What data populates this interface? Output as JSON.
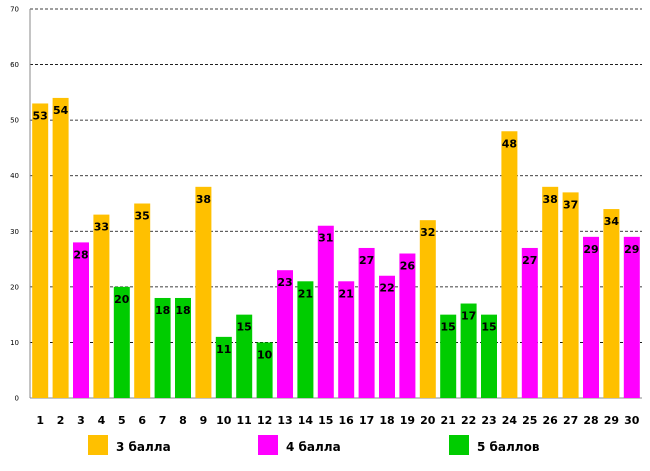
{
  "chart_data": {
    "type": "bar",
    "title": "",
    "xlabel": "",
    "ylabel": "",
    "ylim": [
      0,
      70
    ],
    "yticks": [
      0,
      10,
      20,
      30,
      40,
      50,
      60,
      70
    ],
    "grid": true,
    "categories": [
      "1",
      "2",
      "3",
      "4",
      "5",
      "6",
      "7",
      "8",
      "9",
      "10",
      "11",
      "12",
      "13",
      "14",
      "15",
      "16",
      "17",
      "18",
      "19",
      "20",
      "21",
      "22",
      "23",
      "24",
      "25",
      "26",
      "27",
      "28",
      "29",
      "30"
    ],
    "values": [
      53,
      54,
      28,
      33,
      20,
      35,
      18,
      18,
      38,
      11,
      15,
      10,
      23,
      21,
      31,
      21,
      27,
      22,
      26,
      32,
      15,
      17,
      15,
      48,
      27,
      38,
      37,
      29,
      34,
      29
    ],
    "groups": [
      "3 балла",
      "3 балла",
      "4 балла",
      "3 балла",
      "5 баллов",
      "3 балла",
      "5 баллов",
      "5 баллов",
      "3 балла",
      "5 баллов",
      "5 баллов",
      "5 баллов",
      "4 балла",
      "5 баллов",
      "4 балла",
      "4 балла",
      "4 балла",
      "4 балла",
      "4 балла",
      "3 балла",
      "5 баллов",
      "5 баллов",
      "5 баллов",
      "3 балла",
      "4 балла",
      "3 балла",
      "3 балла",
      "4 балла",
      "3 балла",
      "4 балла"
    ],
    "legend": [
      {
        "name": "3 балла",
        "color": "#FFC000"
      },
      {
        "name": "4 балла",
        "color": "#FF00FF"
      },
      {
        "name": "5 баллов",
        "color": "#00CC00"
      }
    ],
    "legend_position": "bottom"
  }
}
